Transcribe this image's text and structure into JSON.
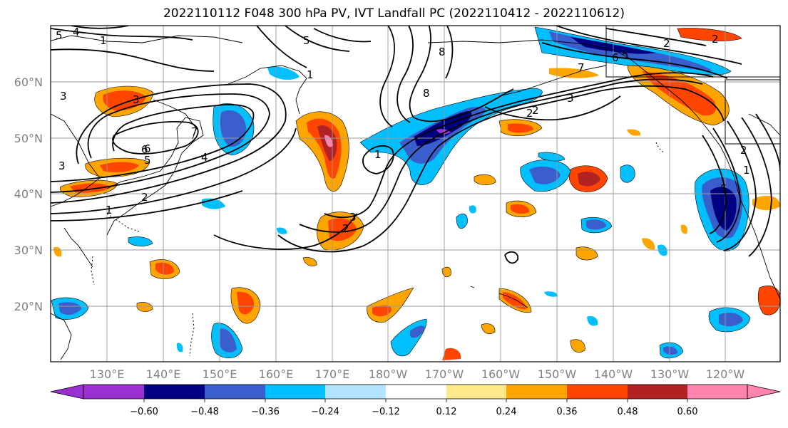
{
  "title": "2022110112 F048 300 hPa PV, IVT Landfall PC (2022110412 - 2022110612)",
  "axes": {
    "lat_ticks": [
      "60°N",
      "50°N",
      "40°N",
      "30°N",
      "20°N"
    ],
    "lon_ticks": [
      "130°E",
      "140°E",
      "150°E",
      "160°E",
      "170°E",
      "180°W",
      "170°W",
      "160°W",
      "150°W",
      "140°W",
      "130°W",
      "120°W"
    ]
  },
  "colorbar": {
    "colors": [
      "#9b30d0",
      "#000080",
      "#3a5fcd",
      "#00bfff",
      "#b2e3ff",
      "#ffffff",
      "#fde98a",
      "#ffa500",
      "#ff4500",
      "#b22222",
      "#ff85b0"
    ],
    "labels": [
      "−0.60",
      "−0.48",
      "−0.36",
      "−0.24",
      "−0.12",
      "0.12",
      "0.24",
      "0.36",
      "0.48",
      "0.60"
    ]
  },
  "contour_labels": [
    "5",
    "4",
    "5",
    "3",
    "7",
    "6",
    "8",
    "1",
    "3",
    "6",
    "5",
    "2",
    "4",
    "1",
    "2",
    "8",
    "1",
    "2",
    "3",
    "6",
    "5",
    "3",
    "2",
    "2",
    "7",
    "2",
    "1",
    "3",
    "5",
    "2",
    "1"
  ]
}
